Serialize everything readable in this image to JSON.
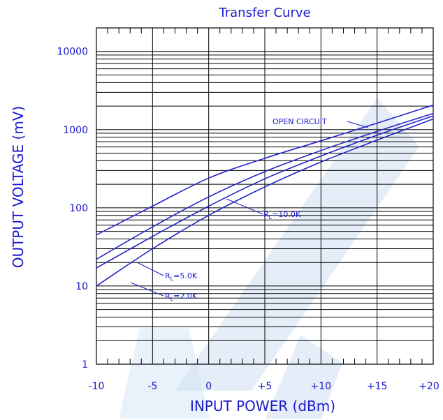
{
  "chart_data": {
    "type": "line",
    "title": "Transfer Curve",
    "xlabel": "INPUT POWER (dBm)",
    "ylabel": "OUTPUT VOLTAGE (mV)",
    "xlim": [
      -10,
      20
    ],
    "ylim": [
      1,
      20000
    ],
    "yscale": "log",
    "x_tick_labels": [
      "-10",
      "-5",
      "0",
      "+5",
      "+10",
      "+15",
      "+20"
    ],
    "y_tick_labels": [
      "1",
      "10",
      "100",
      "1000",
      "10000"
    ],
    "grid": true,
    "colors": {
      "curve": "#2424c8",
      "grid": "#000000",
      "text": "#1a1acc",
      "watermark": "#cfe0f3"
    },
    "series": [
      {
        "name": "OPEN CIRCUIT",
        "x": [
          -10,
          -5,
          0,
          5,
          10,
          15,
          20
        ],
        "y": [
          45,
          105,
          240,
          430,
          720,
          1210,
          2060
        ]
      },
      {
        "name": "R_L=10.0K",
        "x": [
          -10,
          -5,
          0,
          5,
          10,
          15,
          20
        ],
        "y": [
          22,
          57,
          138,
          290,
          540,
          950,
          1610
        ]
      },
      {
        "name": "R_L=5.0K",
        "x": [
          -10,
          -5,
          0,
          5,
          10,
          15,
          20
        ],
        "y": [
          17,
          43,
          105,
          235,
          460,
          850,
          1500
        ]
      },
      {
        "name": "R_L=2.0K",
        "x": [
          -10,
          -5,
          0,
          5,
          10,
          15,
          20
        ],
        "y": [
          10,
          30,
          80,
          185,
          385,
          735,
          1370
        ]
      }
    ],
    "annotations": [
      {
        "text": "OPEN CIRCUIT",
        "series": "OPEN CIRCUIT"
      },
      {
        "main": "R",
        "sub": "L",
        "rest": "=10.0K",
        "series": "R_L=10.0K"
      },
      {
        "main": "R",
        "sub": "L",
        "rest": "=5.0K",
        "series": "R_L=5.0K"
      },
      {
        "main": "R",
        "sub": "L",
        "rest": "=2.0K",
        "series": "R_L=2.0K"
      }
    ]
  }
}
